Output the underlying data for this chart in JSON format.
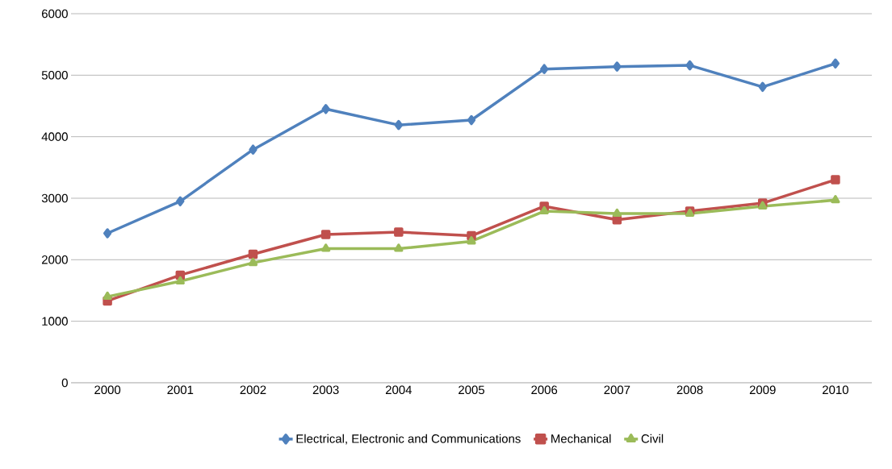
{
  "chart_data": {
    "type": "line",
    "categories": [
      "2000",
      "2001",
      "2002",
      "2003",
      "2004",
      "2005",
      "2006",
      "2007",
      "2008",
      "2009",
      "2010"
    ],
    "series": [
      {
        "name": "Electrical, Electronic and Communications",
        "color": "#4f81bd",
        "marker": "diamond",
        "values": [
          2430,
          2950,
          3790,
          4450,
          4190,
          4270,
          5100,
          5140,
          5160,
          4810,
          5190
        ]
      },
      {
        "name": "Mechanical",
        "color": "#c0504d",
        "marker": "square",
        "values": [
          1330,
          1750,
          2090,
          2410,
          2450,
          2390,
          2870,
          2650,
          2790,
          2920,
          3300
        ]
      },
      {
        "name": "Civil",
        "color": "#9bbb59",
        "marker": "triangle",
        "values": [
          1400,
          1650,
          1950,
          2180,
          2180,
          2300,
          2790,
          2750,
          2750,
          2870,
          2970
        ]
      }
    ],
    "ylim": [
      0,
      6000
    ],
    "yticks": [
      0,
      1000,
      2000,
      3000,
      4000,
      5000,
      6000
    ],
    "grid": "y",
    "legend": "bottom",
    "line_style": "solid"
  }
}
